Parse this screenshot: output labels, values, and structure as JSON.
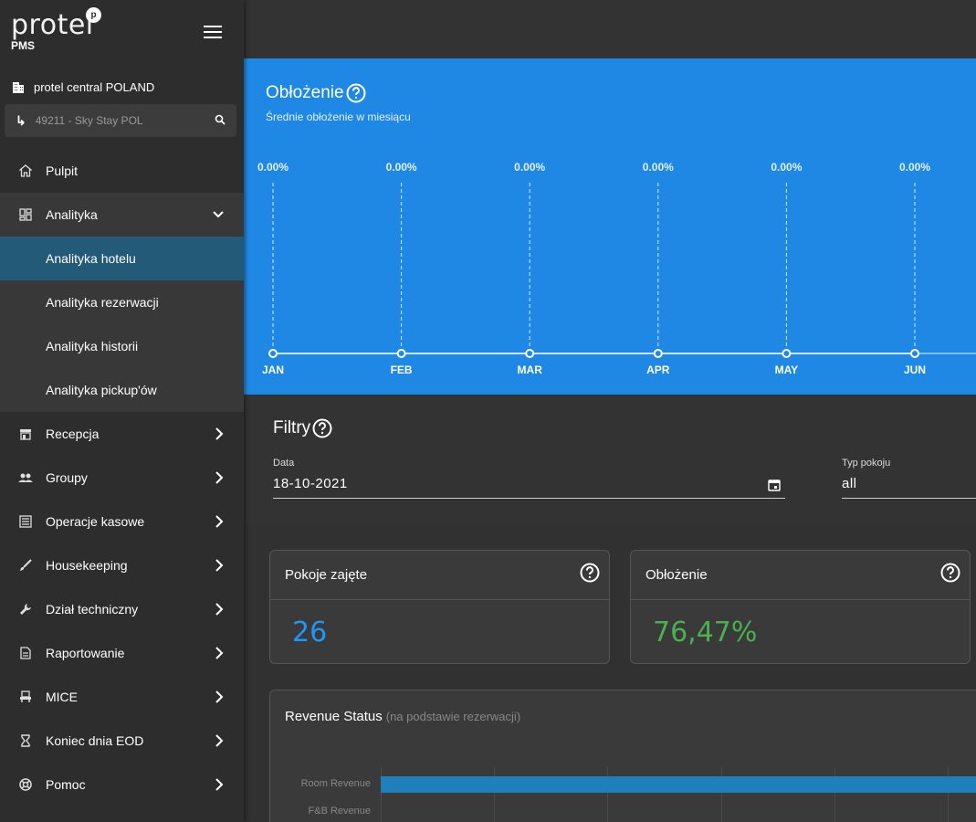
{
  "app": {
    "logo_text": "protel",
    "logo_badge": "p",
    "logo_sub": "PMS"
  },
  "sidebar": {
    "property_name": "protel central POLAND",
    "hotel_select": "49211 - Sky Stay POL",
    "items": [
      {
        "label": "Pulpit",
        "icon": "home-icon"
      },
      {
        "label": "Analityka",
        "icon": "dashboard-icon",
        "expanded": true
      },
      {
        "label": "Recepcja",
        "icon": "reception-icon"
      },
      {
        "label": "Groupy",
        "icon": "groups-icon"
      },
      {
        "label": "Operacje kasowe",
        "icon": "cash-icon"
      },
      {
        "label": "Housekeeping",
        "icon": "brush-icon"
      },
      {
        "label": "Dział techniczny",
        "icon": "wrench-icon"
      },
      {
        "label": "Raportowanie",
        "icon": "report-icon"
      },
      {
        "label": "MICE",
        "icon": "seat-icon"
      },
      {
        "label": "Koniec dnia EOD",
        "icon": "hourglass-icon"
      },
      {
        "label": "Pomoc",
        "icon": "help-ring-icon"
      }
    ],
    "subitems": [
      {
        "label": "Analityka hotelu",
        "active": true
      },
      {
        "label": "Analityka rezerwacji"
      },
      {
        "label": "Analityka historii"
      },
      {
        "label": "Analityka pickup'ów"
      }
    ]
  },
  "occupancy": {
    "title": "Obłożenie",
    "subtitle": "Średnie obłożenie w miesiącu"
  },
  "chart_data": {
    "type": "line",
    "categories": [
      "JAN",
      "FEB",
      "MAR",
      "APR",
      "MAY",
      "JUN"
    ],
    "values": [
      0,
      0,
      0,
      0,
      0,
      0
    ],
    "data_labels": [
      "0.00%",
      "0.00%",
      "0.00%",
      "0.00%",
      "0.00%",
      "0.00%"
    ],
    "title": "Obłożenie",
    "subtitle": "Średnie obłożenie w miesiącu",
    "ylim": [
      0,
      100
    ],
    "grid": true
  },
  "filters": {
    "title": "Filtry",
    "date_label": "Data",
    "date_value": "18-10-2021",
    "room_type_label": "Typ pokoju",
    "room_type_value": "all"
  },
  "kpis": {
    "rooms_occupied": {
      "label": "Pokoje zajęte",
      "value": "26",
      "color": "#2196f3"
    },
    "occupancy": {
      "label": "Obłożenie",
      "value": "76,47%",
      "color": "#4caf50"
    }
  },
  "revenue": {
    "title": "Revenue Status",
    "subtitle": "(na podstawie rezerwacji)",
    "rows": [
      "Room Revenue",
      "F&B Revenue"
    ]
  },
  "colors": {
    "chart_bg": "#1f88e5",
    "active_nav": "#235a78",
    "revenue_bar": "#1f7fba"
  }
}
